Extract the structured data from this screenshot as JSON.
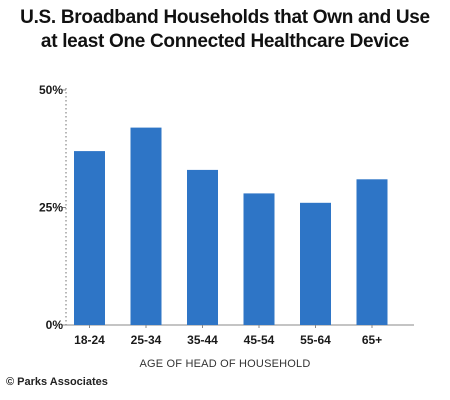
{
  "chart_data": {
    "type": "bar",
    "title_lines": [
      "U.S. Broadband Households that Own and Use",
      "at least One Connected Healthcare Device"
    ],
    "categories": [
      "18-24",
      "25-34",
      "35-44",
      "45-54",
      "55-64",
      "65+"
    ],
    "values": [
      37,
      42,
      33,
      28,
      26,
      31
    ],
    "y_ticks": [
      {
        "value": 0,
        "label": "0%"
      },
      {
        "value": 25,
        "label": "25%"
      },
      {
        "value": 50,
        "label": "50%"
      }
    ],
    "ylim": [
      0,
      50
    ],
    "xlabel": "AGE OF HEAD OF HOUSEHOLD",
    "ylabel": "",
    "grid": false,
    "bar_color": "#2e75c6",
    "axis_color": "#888888"
  },
  "footer": {
    "source": "© Parks Associates"
  }
}
